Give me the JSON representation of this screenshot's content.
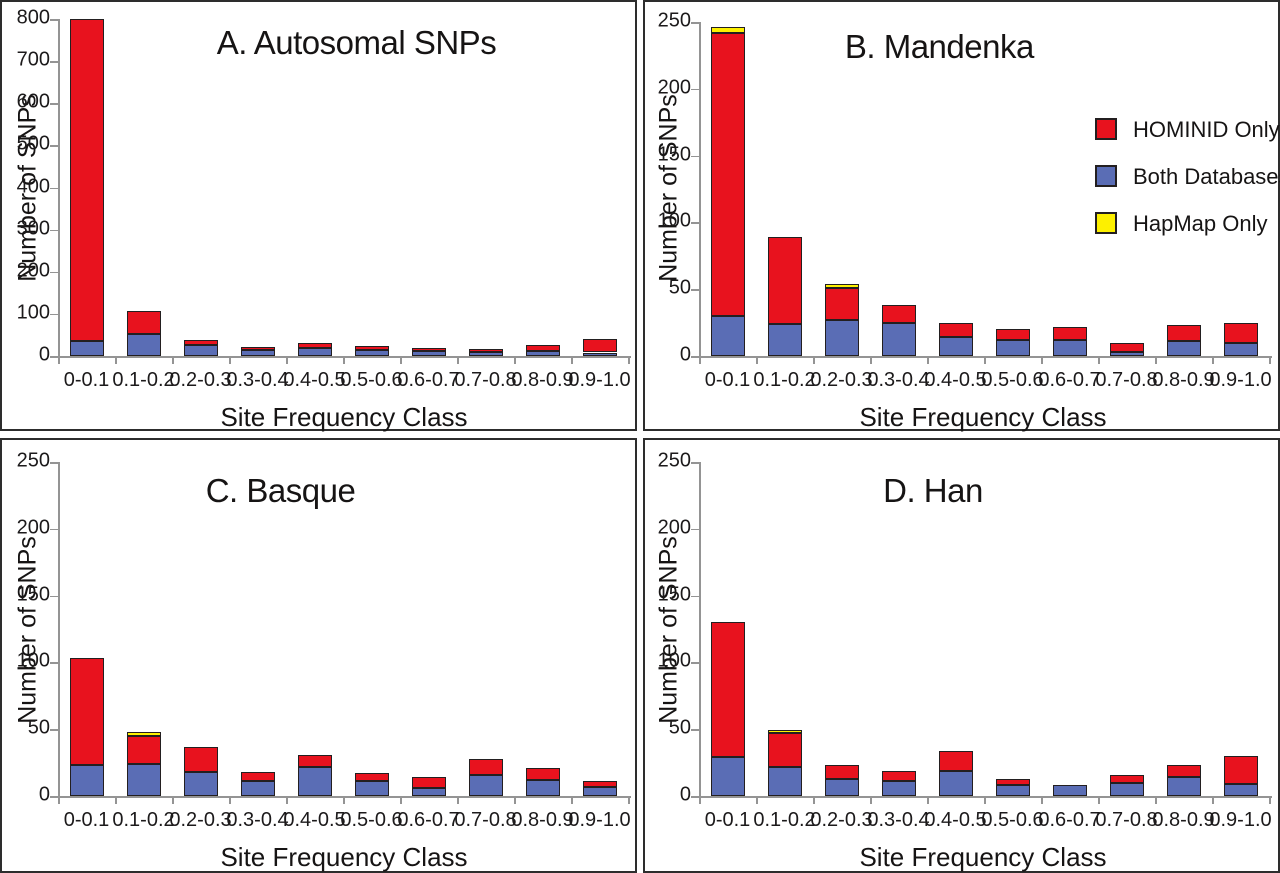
{
  "figure": {
    "xlabel": "Site Frequency Class",
    "ylabel": "Number of SNPs",
    "categories": [
      "0-0.1",
      "0.1-0.2",
      "0.2-0.3",
      "0.3-0.4",
      "0.4-0.5",
      "0.5-0.6",
      "0.6-0.7",
      "0.7-0.8",
      "0.8-0.9",
      "0.9-1.0"
    ]
  },
  "legend": {
    "items": [
      {
        "label": "HOMINID Only",
        "color": "#e8121e"
      },
      {
        "label": "Both Databases",
        "color": "#5a6db5"
      },
      {
        "label": "HapMap Only",
        "color": "#fdf000"
      }
    ]
  },
  "colors": {
    "hominid_red": "#e8121e",
    "both_blue": "#5a6db5",
    "hapmap_yellow": "#fdf000",
    "outline": "#231f20",
    "axis_gray": "#949494"
  },
  "chart_data": [
    {
      "type": "bar",
      "stacked": true,
      "title": "A. Autosomal SNPs",
      "xlabel": "Site Frequency Class",
      "ylabel": "Number of SNPs",
      "categories": [
        "0-0.1",
        "0.1-0.2",
        "0.2-0.3",
        "0.3-0.4",
        "0.4-0.5",
        "0.5-0.6",
        "0.6-0.7",
        "0.7-0.8",
        "0.8-0.9",
        "0.9-1.0"
      ],
      "ylim": [
        0,
        800
      ],
      "yticks": [
        0,
        100,
        200,
        300,
        400,
        500,
        600,
        700,
        800
      ],
      "grid": false,
      "legend_visible": false,
      "series": [
        {
          "name": "Both Databases",
          "color": "#5a6db5",
          "values": [
            36,
            52,
            25,
            14,
            20,
            15,
            11,
            9,
            13,
            6
          ]
        },
        {
          "name": "HOMINID Only",
          "color": "#e8121e",
          "values": [
            764,
            55,
            12,
            6,
            10,
            8,
            5,
            7,
            14,
            32
          ]
        },
        {
          "name": "HapMap Only",
          "color": "#fdf000",
          "values": [
            0,
            0,
            0,
            0,
            0,
            0,
            0,
            0,
            0,
            0
          ]
        }
      ],
      "totals": [
        800,
        107,
        37,
        20,
        30,
        23,
        16,
        16,
        27,
        38
      ]
    },
    {
      "type": "bar",
      "stacked": true,
      "title": "B. Mandenka",
      "xlabel": "Site Frequency Class",
      "ylabel": "Number of SNPs",
      "categories": [
        "0-0.1",
        "0.1-0.2",
        "0.2-0.3",
        "0.3-0.4",
        "0.4-0.5",
        "0.5-0.6",
        "0.6-0.7",
        "0.7-0.8",
        "0.8-0.9",
        "0.9-1.0"
      ],
      "ylim": [
        0,
        250
      ],
      "yticks": [
        0,
        50,
        100,
        150,
        200,
        250
      ],
      "grid": false,
      "legend_visible": true,
      "legend_position": "upper right",
      "series": [
        {
          "name": "Both Databases",
          "color": "#5a6db5",
          "values": [
            30,
            24,
            27,
            25,
            14,
            12,
            12,
            3,
            11,
            10
          ]
        },
        {
          "name": "HOMINID Only",
          "color": "#e8121e",
          "values": [
            212,
            65,
            24,
            13,
            11,
            8,
            10,
            7,
            12,
            15
          ]
        },
        {
          "name": "HapMap Only",
          "color": "#fdf000",
          "values": [
            4,
            0,
            3,
            0,
            0,
            0,
            0,
            0,
            0,
            0
          ]
        }
      ],
      "totals": [
        246,
        89,
        54,
        38,
        25,
        20,
        22,
        10,
        23,
        25
      ]
    },
    {
      "type": "bar",
      "stacked": true,
      "title": "C. Basque",
      "xlabel": "Site Frequency Class",
      "ylabel": "Number of SNPs",
      "categories": [
        "0-0.1",
        "0.1-0.2",
        "0.2-0.3",
        "0.3-0.4",
        "0.4-0.5",
        "0.5-0.6",
        "0.6-0.7",
        "0.7-0.8",
        "0.8-0.9",
        "0.9-1.0"
      ],
      "ylim": [
        0,
        250
      ],
      "yticks": [
        0,
        50,
        100,
        150,
        200,
        250
      ],
      "grid": false,
      "legend_visible": false,
      "series": [
        {
          "name": "Both Databases",
          "color": "#5a6db5",
          "values": [
            23,
            24,
            18,
            11,
            22,
            11,
            6,
            16,
            12,
            7
          ]
        },
        {
          "name": "HOMINID Only",
          "color": "#e8121e",
          "values": [
            80,
            21,
            19,
            7,
            9,
            6,
            8,
            12,
            9,
            4
          ]
        },
        {
          "name": "HapMap Only",
          "color": "#fdf000",
          "values": [
            0,
            1,
            0,
            0,
            0,
            0,
            0,
            0,
            0,
            0
          ]
        }
      ],
      "totals": [
        103,
        46,
        37,
        18,
        31,
        17,
        14,
        28,
        21,
        11
      ]
    },
    {
      "type": "bar",
      "stacked": true,
      "title": "D. Han",
      "xlabel": "Site Frequency Class",
      "ylabel": "Number of SNPs",
      "categories": [
        "0-0.1",
        "0.1-0.2",
        "0.2-0.3",
        "0.3-0.4",
        "0.4-0.5",
        "0.5-0.6",
        "0.6-0.7",
        "0.7-0.8",
        "0.8-0.9",
        "0.9-1.0"
      ],
      "ylim": [
        0,
        250
      ],
      "yticks": [
        0,
        50,
        100,
        150,
        200,
        250
      ],
      "grid": false,
      "legend_visible": false,
      "series": [
        {
          "name": "Both Databases",
          "color": "#5a6db5",
          "values": [
            29,
            22,
            13,
            11,
            19,
            8,
            8,
            10,
            14,
            9
          ]
        },
        {
          "name": "HOMINID Only",
          "color": "#e8121e",
          "values": [
            101,
            25,
            10,
            8,
            15,
            5,
            0,
            6,
            9,
            21
          ]
        },
        {
          "name": "HapMap Only",
          "color": "#fdf000",
          "values": [
            0,
            1,
            0,
            0,
            0,
            0,
            0,
            0,
            0,
            0
          ]
        }
      ],
      "totals": [
        130,
        48,
        23,
        19,
        34,
        13,
        8,
        16,
        23,
        30
      ]
    }
  ]
}
